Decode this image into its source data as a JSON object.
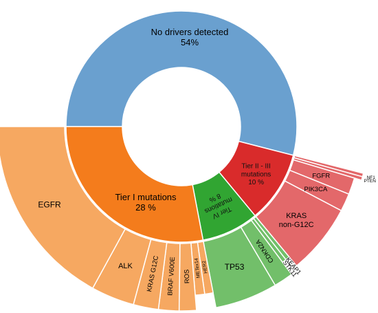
{
  "colors": {
    "none": "#6aa0cf",
    "tier1_inner": "#f47c1c",
    "tier1_outer": "#f6a861",
    "tier23_inner": "#d92b2b",
    "tier23_outer": "#e3686a",
    "tier4_inner": "#31a532",
    "tier4_outer": "#72bf6a",
    "separator": "#ffffff"
  },
  "chart_data": {
    "type": "sunburst",
    "inner": [
      {
        "id": "none",
        "label": "No drivers detected",
        "value_label": "54%",
        "value": 54
      },
      {
        "id": "tier23",
        "label": "Tier II - III mutations",
        "label_lines": [
          "Tier II - III",
          "mutations"
        ],
        "value_label": "10 %",
        "value": 10
      },
      {
        "id": "tier4",
        "label": "Tier IV mutations",
        "label_lines": [
          "Tier IV",
          "mutations"
        ],
        "value_label": "8 %",
        "value": 8
      },
      {
        "id": "tier1",
        "label": "Tier I mutations",
        "value_label": "28 %",
        "value": 28
      }
    ],
    "outer": [
      {
        "parent": "tier23",
        "label": "NF1",
        "value": 0.3
      },
      {
        "parent": "tier23",
        "label": "PTEN",
        "value": 0.3
      },
      {
        "parent": "tier23",
        "label": "FGFR",
        "value": 1.5
      },
      {
        "parent": "tier23",
        "label": "PIK3CA",
        "value": 1.6
      },
      {
        "parent": "tier23",
        "label": "KRAS non-G12C",
        "label_lines": [
          "KRAS",
          "non-G12C"
        ],
        "value": 6.3
      },
      {
        "parent": "tier4",
        "label": "KEAP1",
        "value": 0.4
      },
      {
        "parent": "tier4",
        "label": "STK11",
        "value": 0.4
      },
      {
        "parent": "tier4",
        "label": "CDKN2A",
        "value": 1.7
      },
      {
        "parent": "tier4",
        "label": "TP53",
        "value": 5.5
      },
      {
        "parent": "tier1",
        "label": "HER2",
        "value": 0.8
      },
      {
        "parent": "tier1",
        "label": "METex14",
        "value": 0.9
      },
      {
        "parent": "tier1",
        "label": "ROS",
        "value": 1.5
      },
      {
        "parent": "tier1",
        "label": "BRAF V600E",
        "value": 1.8
      },
      {
        "parent": "tier1",
        "label": "KRAS G12C",
        "value": 2.2
      },
      {
        "parent": "tier1",
        "label": "ALK",
        "value": 3.8
      },
      {
        "parent": "tier1",
        "label": "EGFR",
        "value": 17.0
      }
    ]
  }
}
